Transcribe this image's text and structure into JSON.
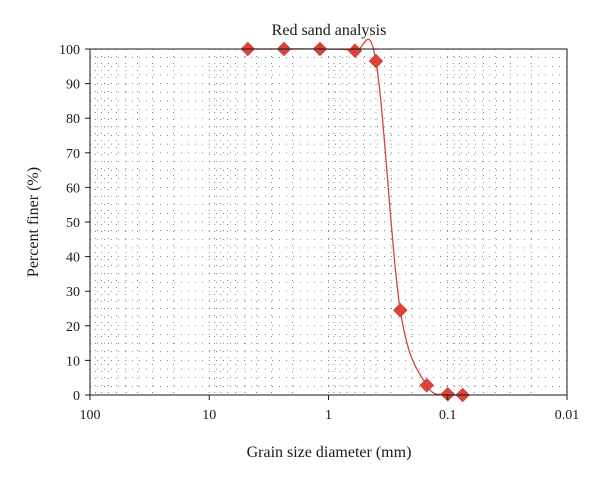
{
  "chart_data": {
    "type": "scatter",
    "title": "Red sand analysis",
    "xlabel": "Grain size diameter (mm)",
    "ylabel": "Percent finer (%)",
    "x_scale": "log",
    "x_reversed": true,
    "xlim": [
      100,
      0.01
    ],
    "ylim": [
      0,
      100
    ],
    "x_ticks": [
      {
        "value": 100,
        "label": "100"
      },
      {
        "value": 10,
        "label": "10"
      },
      {
        "value": 1,
        "label": "1"
      },
      {
        "value": 0.1,
        "label": "0.1"
      },
      {
        "value": 0.01,
        "label": "0.01"
      }
    ],
    "y_ticks": [
      {
        "value": 0,
        "label": "0"
      },
      {
        "value": 10,
        "label": "10"
      },
      {
        "value": 20,
        "label": "20"
      },
      {
        "value": 30,
        "label": "30"
      },
      {
        "value": 40,
        "label": "40"
      },
      {
        "value": 50,
        "label": "50"
      },
      {
        "value": 60,
        "label": "60"
      },
      {
        "value": 70,
        "label": "70"
      },
      {
        "value": 80,
        "label": "80"
      },
      {
        "value": 90,
        "label": "90"
      },
      {
        "value": 100,
        "label": "100"
      }
    ],
    "grid": "dotted",
    "marker": "diamond",
    "series": [
      {
        "color": "#d9433a",
        "points": [
          {
            "x": 4.75,
            "y": 100
          },
          {
            "x": 2.36,
            "y": 100
          },
          {
            "x": 1.18,
            "y": 100
          },
          {
            "x": 0.6,
            "y": 99.5
          },
          {
            "x": 0.4,
            "y": 96.5
          },
          {
            "x": 0.25,
            "y": 24.5
          },
          {
            "x": 0.15,
            "y": 2.8
          },
          {
            "x": 0.1,
            "y": 0.2
          },
          {
            "x": 0.075,
            "y": 0
          }
        ]
      }
    ]
  }
}
